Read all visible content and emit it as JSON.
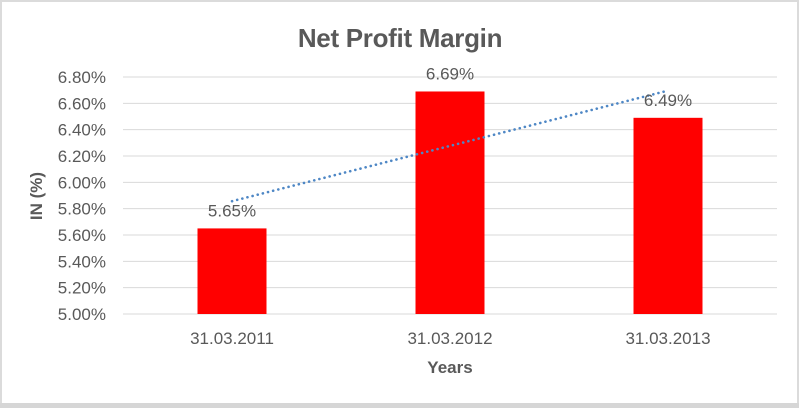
{
  "chart": {
    "title": "Net Profit Margin",
    "y_axis_title": "IN (%)",
    "x_axis_title": "Years"
  },
  "colors": {
    "bar": "#FF0000",
    "trendline": "#4E87C5",
    "text": "#595959",
    "gridline": "#D9D9D9",
    "frame_border": "#DBDBDB",
    "frame_border_bottom": "#D6D6D6",
    "background": "#FFFFFF"
  },
  "chart_data": {
    "type": "bar",
    "title": "Net Profit Margin",
    "xlabel": "Years",
    "ylabel": "IN (%)",
    "categories": [
      "31.03.2011",
      "31.03.2012",
      "31.03.2013"
    ],
    "values": [
      5.65,
      6.69,
      6.49
    ],
    "data_labels": [
      "5.65%",
      "6.69%",
      "6.49%"
    ],
    "ylim": [
      5.0,
      6.8
    ],
    "ytick_step": 0.2,
    "ytick_labels": [
      "5.00%",
      "5.20%",
      "5.40%",
      "5.60%",
      "5.80%",
      "6.00%",
      "6.20%",
      "6.40%",
      "6.60%",
      "6.80%"
    ],
    "grid": true,
    "legend": false,
    "bar_color": "#FF0000",
    "trendline": {
      "type": "linear",
      "style": "dotted",
      "color": "#4E87C5"
    }
  }
}
